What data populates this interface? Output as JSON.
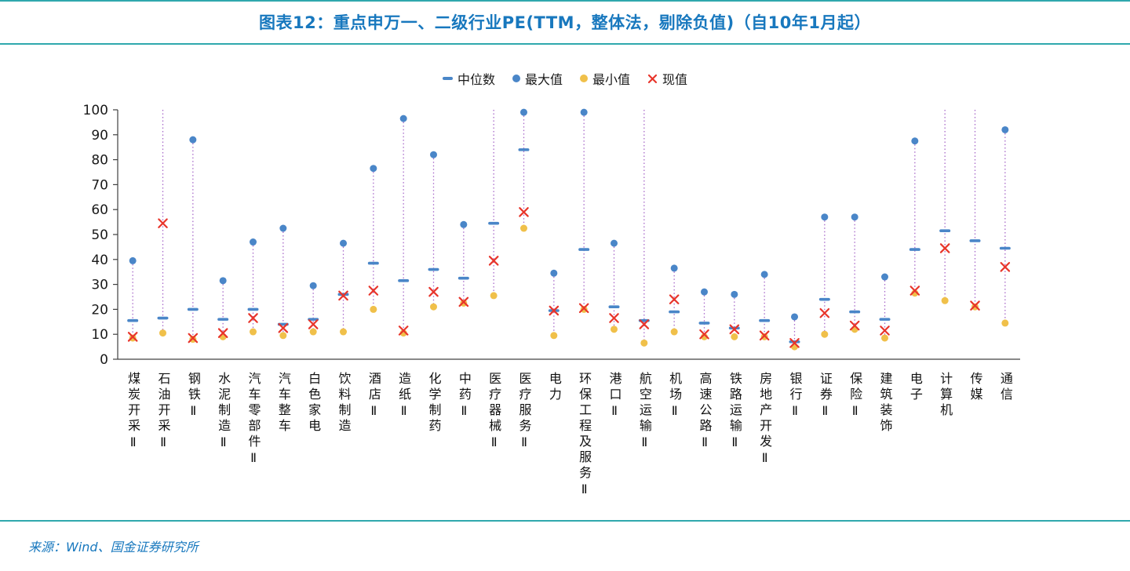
{
  "source": "来源：Wind、国金证券研究所",
  "colors": {
    "accent_teal": "#2FA8AD",
    "title_blue": "#1878BE",
    "series_blue": "#4A86C8",
    "series_yellow": "#F0C04A",
    "series_red": "#E8352B",
    "dotted_purple": "#A869C9",
    "axis": "#404040",
    "tick_label": "#1a1a1a"
  },
  "chart_data": {
    "type": "scatter",
    "title": "图表12：重点申万一、二级行业PE(TTM，整体法，剔除负值)（自10年1月起）",
    "xlabel": "",
    "ylabel": "",
    "ylim": [
      0,
      100
    ],
    "yticks": [
      0,
      10,
      20,
      30,
      40,
      50,
      60,
      70,
      80,
      90,
      100
    ],
    "grid": false,
    "legend_position": "top-center",
    "range_line_style": "dotted vertical line from min to max; null max means maximum exceeds chart top and line is drawn to 100",
    "categories": [
      "煤炭开采Ⅱ",
      "石油开采Ⅱ",
      "钢铁Ⅱ",
      "水泥制造Ⅱ",
      "汽车零部件Ⅱ",
      "汽车整车",
      "白色家电",
      "饮料制造",
      "酒店Ⅱ",
      "造纸Ⅱ",
      "化学制药",
      "中药Ⅱ",
      "医疗器械Ⅱ",
      "医疗服务Ⅱ",
      "电力",
      "环保工程及服务Ⅱ",
      "港口Ⅱ",
      "航空运输Ⅱ",
      "机场Ⅱ",
      "高速公路Ⅱ",
      "铁路运输Ⅱ",
      "房地产开发Ⅱ",
      "银行Ⅱ",
      "证券Ⅱ",
      "保险Ⅱ",
      "建筑装饰",
      "电子",
      "计算机",
      "传媒",
      "通信"
    ],
    "series": [
      {
        "key": "median",
        "name": "中位数",
        "marker": "dash",
        "color": "#4A86C8",
        "values": [
          15.5,
          16.5,
          20,
          16,
          20,
          14,
          16,
          26,
          38.5,
          31.5,
          36,
          32.5,
          54.5,
          84,
          19.5,
          44,
          21,
          15.5,
          19,
          14.5,
          12.5,
          15.5,
          7,
          24,
          19,
          16,
          44,
          51.5,
          47.5,
          44.5
        ]
      },
      {
        "key": "max",
        "name": "最大值",
        "marker": "dot",
        "color": "#4A86C8",
        "values": [
          39.5,
          null,
          88,
          31.5,
          47,
          52.5,
          29.5,
          46.5,
          76.5,
          96.5,
          82,
          54,
          null,
          99,
          34.5,
          99,
          46.5,
          null,
          36.5,
          27,
          26,
          34,
          17,
          57,
          57,
          33,
          87.5,
          null,
          null,
          92
        ]
      },
      {
        "key": "min",
        "name": "最小值",
        "marker": "dot",
        "color": "#F0C04A",
        "values": [
          8.5,
          10.5,
          8,
          9,
          11,
          9.5,
          11,
          11,
          20,
          10.5,
          21,
          22.5,
          25.5,
          52.5,
          9.5,
          20,
          12,
          6.5,
          11,
          9,
          9,
          9,
          5,
          10,
          12,
          8.5,
          26.5,
          23.5,
          21,
          14.5
        ]
      },
      {
        "key": "current",
        "name": "现值",
        "marker": "x",
        "color": "#E8352B",
        "values": [
          9,
          54.5,
          8.5,
          10.5,
          16.5,
          12.5,
          14,
          25.5,
          27.5,
          11.5,
          27,
          23,
          39.5,
          59,
          19.5,
          20.5,
          16.5,
          14,
          24,
          10,
          12,
          9.5,
          6.5,
          18.5,
          13.5,
          11.5,
          27.5,
          44.5,
          21.5,
          37
        ]
      }
    ]
  }
}
